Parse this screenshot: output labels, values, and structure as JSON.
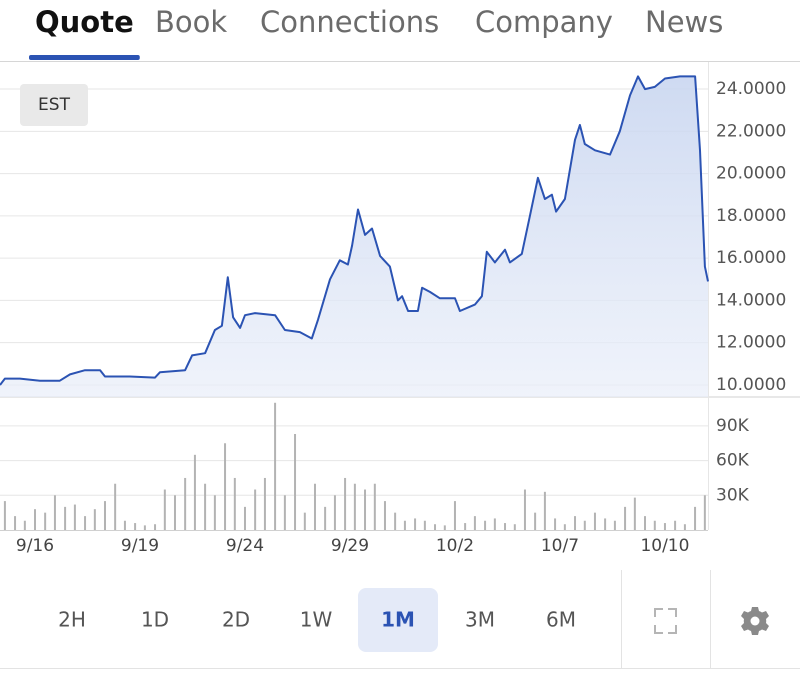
{
  "tabs": [
    "Quote",
    "Book",
    "Connections",
    "Company",
    "News"
  ],
  "active_tab": 0,
  "timezone": "EST",
  "ranges": [
    "2H",
    "1D",
    "2D",
    "1W",
    "1M",
    "3M",
    "6M"
  ],
  "selected_range": 4,
  "chart_data": {
    "type": "line",
    "xlim": [
      -1,
      19.23
    ],
    "xticks": [
      {
        "value": 0,
        "label": "9/16"
      },
      {
        "value": 3,
        "label": "9/19"
      },
      {
        "value": 6,
        "label": "9/24"
      },
      {
        "value": 9,
        "label": "9/29"
      },
      {
        "value": 12,
        "label": "10/2"
      },
      {
        "value": 15,
        "label": "10/7"
      },
      {
        "value": 18,
        "label": "10/10"
      }
    ],
    "ylim": [
      9.43,
      25.28
    ],
    "yticks": [
      {
        "value": 10,
        "label": "10.0000"
      },
      {
        "value": 12,
        "label": "12.0000"
      },
      {
        "value": 14,
        "label": "14.0000"
      },
      {
        "value": 16,
        "label": "16.0000"
      },
      {
        "value": 18,
        "label": "18.0000"
      },
      {
        "value": 20,
        "label": "20.0000"
      },
      {
        "value": 22,
        "label": "22.0000"
      },
      {
        "value": 24,
        "label": "24.0000"
      }
    ],
    "y2lim": [
      0,
      115000
    ],
    "y2ticks": [
      {
        "value": 30000,
        "label": "30K"
      },
      {
        "value": 60000,
        "label": "60K"
      },
      {
        "value": 90000,
        "label": "90K"
      }
    ],
    "grid": true,
    "series": [
      {
        "type": "line",
        "color": "#2b53b3",
        "x": [
          -1.0,
          -0.86,
          -0.43,
          0.14,
          0.71,
          1.0,
          1.43,
          1.86,
          2.0,
          2.71,
          3.43,
          3.57,
          4.29,
          4.49,
          4.86,
          5.14,
          5.34,
          5.51,
          5.66,
          5.86,
          6.0,
          6.29,
          6.86,
          7.14,
          7.57,
          7.91,
          8.09,
          8.43,
          8.71,
          8.94,
          9.06,
          9.23,
          9.43,
          9.63,
          9.86,
          10.14,
          10.37,
          10.49,
          10.66,
          10.94,
          11.06,
          11.29,
          11.57,
          12.0,
          12.14,
          12.57,
          12.77,
          12.91,
          13.14,
          13.43,
          13.57,
          13.91,
          14.14,
          14.37,
          14.57,
          14.77,
          14.89,
          15.14,
          15.43,
          15.57,
          15.71,
          16.0,
          16.43,
          16.71,
          17.0,
          17.23,
          17.43,
          17.71,
          18.0,
          18.43,
          18.86,
          19.0,
          19.14,
          19.23
        ],
        "values": [
          10.0,
          10.3,
          10.3,
          10.2,
          10.2,
          10.5,
          10.7,
          10.7,
          10.4,
          10.4,
          10.35,
          10.6,
          10.7,
          11.4,
          11.5,
          12.6,
          12.8,
          15.1,
          13.2,
          12.7,
          13.3,
          13.4,
          13.3,
          12.6,
          12.5,
          12.2,
          13.1,
          15.0,
          15.9,
          15.7,
          16.6,
          18.3,
          17.1,
          17.4,
          16.1,
          15.6,
          14.0,
          14.2,
          13.5,
          13.5,
          14.6,
          14.4,
          14.1,
          14.1,
          13.5,
          13.8,
          14.2,
          16.3,
          15.8,
          16.4,
          15.8,
          16.2,
          18.0,
          19.8,
          18.8,
          19.0,
          18.2,
          18.8,
          21.6,
          22.3,
          21.4,
          21.1,
          20.9,
          22.0,
          23.7,
          24.6,
          24.0,
          24.1,
          24.5,
          24.6,
          24.6,
          21.1,
          15.6,
          14.9
        ]
      },
      {
        "type": "bar",
        "axis": "y2",
        "color": "#b3b3b3",
        "x": [
          -0.86,
          -0.57,
          -0.29,
          0,
          0.29,
          0.57,
          0.86,
          1.14,
          1.43,
          1.71,
          2.0,
          2.29,
          2.57,
          2.86,
          3.14,
          3.43,
          3.71,
          4.0,
          4.29,
          4.57,
          4.86,
          5.14,
          5.43,
          5.71,
          6.0,
          6.29,
          6.57,
          6.86,
          7.14,
          7.43,
          7.71,
          8.0,
          8.29,
          8.57,
          8.86,
          9.14,
          9.43,
          9.71,
          10.0,
          10.29,
          10.57,
          10.86,
          11.14,
          11.43,
          11.71,
          12.0,
          12.29,
          12.57,
          12.86,
          13.14,
          13.43,
          13.71,
          14.0,
          14.29,
          14.57,
          14.86,
          15.14,
          15.43,
          15.71,
          16.0,
          16.29,
          16.57,
          16.86,
          17.14,
          17.43,
          17.71,
          18.0,
          18.29,
          18.57,
          18.86,
          19.14
        ],
        "values": [
          25000,
          12000,
          8000,
          18000,
          15000,
          30000,
          20000,
          22000,
          12000,
          18000,
          25000,
          40000,
          8000,
          6000,
          4000,
          5000,
          35000,
          30000,
          45000,
          65000,
          40000,
          30000,
          75000,
          45000,
          20000,
          35000,
          45000,
          110000,
          30000,
          83000,
          15000,
          40000,
          20000,
          30000,
          45000,
          40000,
          35000,
          40000,
          25000,
          15000,
          8000,
          10000,
          8000,
          5000,
          4000,
          25000,
          6000,
          12000,
          8000,
          10000,
          6000,
          5000,
          35000,
          15000,
          33000,
          10000,
          5000,
          12000,
          8000,
          15000,
          10000,
          8000,
          20000,
          28000,
          12000,
          8000,
          6000,
          8000,
          5000,
          20000,
          30000
        ]
      }
    ]
  }
}
